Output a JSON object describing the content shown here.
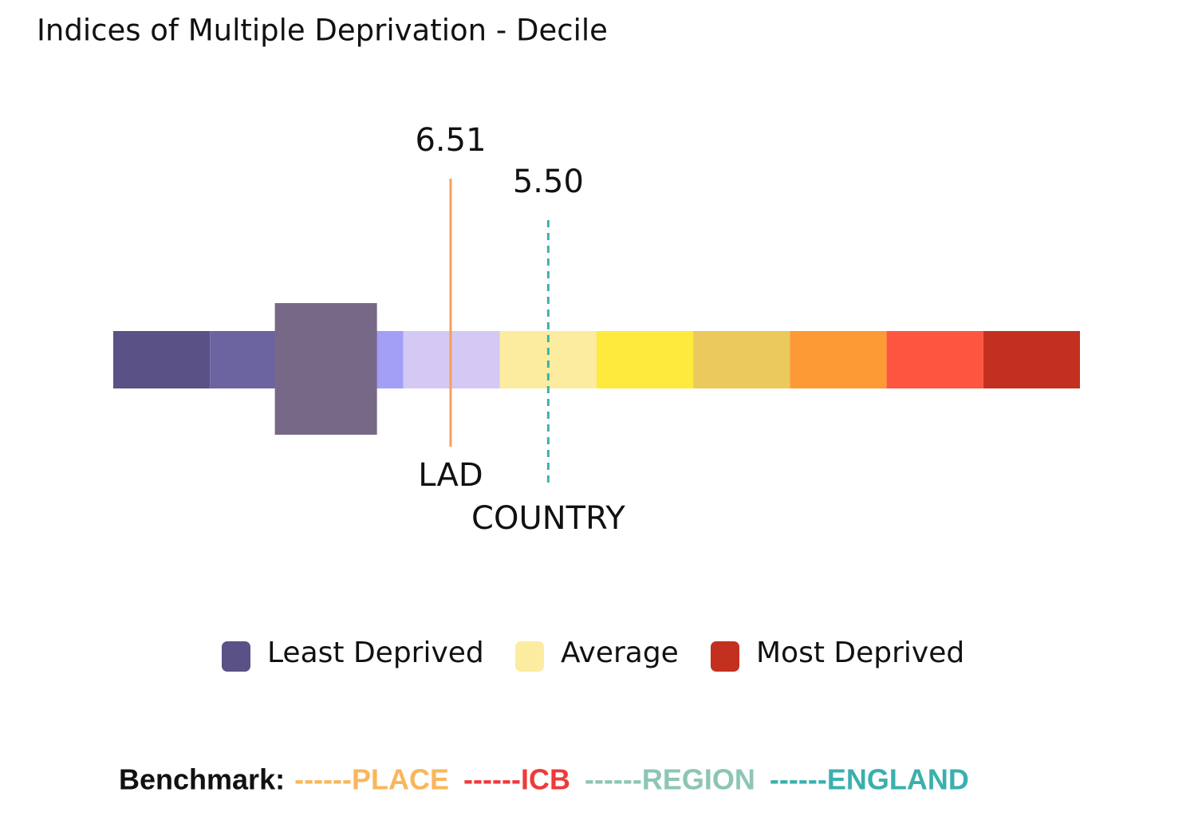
{
  "chart_data": {
    "type": "decile-bar",
    "title": "Indices of Multiple Deprivation - Decile",
    "xlim": [
      10,
      0
    ],
    "bins": [
      10,
      9,
      8,
      7,
      6,
      5,
      4,
      3,
      2,
      1,
      0
    ],
    "colors": [
      "#5a5186",
      "#6c64a1",
      "#a39ff7",
      "#d4c9f4",
      "#fbeca0",
      "#fdea3d",
      "#ecc95c",
      "#fd9a36",
      "#fe5541",
      "#c4301f"
    ],
    "highlight": {
      "value": 7.8,
      "color": "#776887"
    },
    "reference_lines": [
      {
        "name": "LAD",
        "value": 6.51,
        "value_label": "6.51",
        "color": "#f5a05a",
        "style": "solid"
      },
      {
        "name": "COUNTRY",
        "value": 5.5,
        "value_label": "5.50",
        "color": "#3fb0ad",
        "style": "dashed"
      }
    ],
    "legend": [
      {
        "name": "Least Deprived",
        "color": "#5a5186"
      },
      {
        "name": "Average",
        "color": "#fbeca0"
      },
      {
        "name": "Most Deprived",
        "color": "#c4301f"
      }
    ],
    "benchmark": {
      "label": "Benchmark:",
      "items": [
        {
          "text": "------PLACE",
          "color": "#f9b65c"
        },
        {
          "text": "------ICB",
          "color": "#ef3a3a"
        },
        {
          "text": "------REGION",
          "color": "#8dc5b5"
        },
        {
          "text": "------ENGLAND",
          "color": "#3ab0ad"
        }
      ]
    }
  }
}
